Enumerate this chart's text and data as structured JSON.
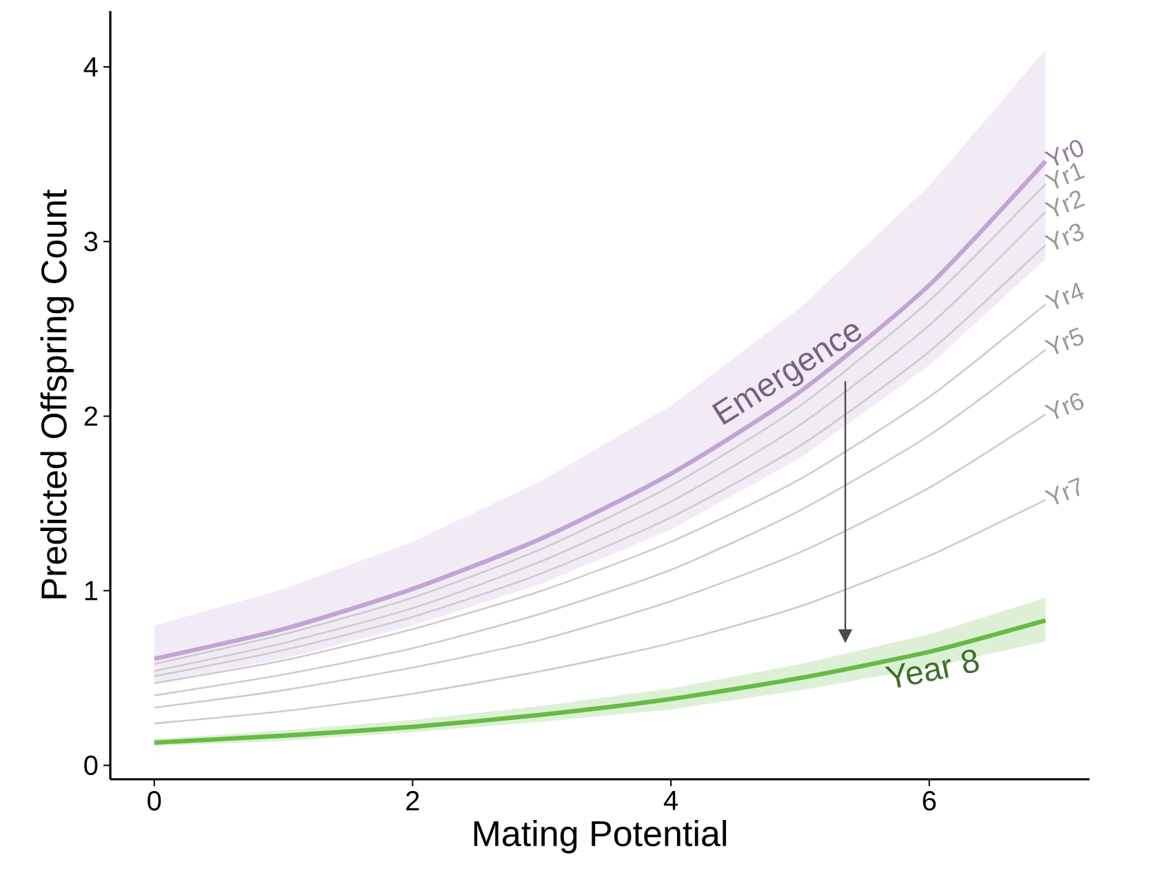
{
  "chart_data": {
    "type": "line",
    "xlabel": "Mating Potential",
    "ylabel": "Predicted Offspring Count",
    "x": [
      0,
      1,
      2,
      3,
      4,
      5,
      6,
      6.9
    ],
    "xlim": [
      -0.34,
      7.24
    ],
    "ylim": [
      -0.08,
      4.32
    ],
    "xticks": [
      0,
      2,
      4,
      6
    ],
    "yticks": [
      0,
      1,
      2,
      3,
      4
    ],
    "series": [
      {
        "name": "Yr0",
        "color": "#c3a3d6",
        "values": [
          0.61,
          0.78,
          1.01,
          1.3,
          1.67,
          2.14,
          2.75,
          3.46
        ],
        "lower": [
          0.47,
          0.61,
          0.8,
          1.04,
          1.35,
          1.76,
          2.29,
          2.9
        ],
        "upper": [
          0.8,
          1.01,
          1.28,
          1.63,
          2.06,
          2.62,
          3.32,
          4.1
        ]
      },
      {
        "name": "Yr1",
        "color": "#cccccc",
        "values": [
          0.58,
          0.75,
          0.96,
          1.24,
          1.6,
          2.06,
          2.66,
          3.33
        ]
      },
      {
        "name": "Yr2",
        "color": "#cccccc",
        "values": [
          0.54,
          0.7,
          0.9,
          1.17,
          1.51,
          1.95,
          2.52,
          3.17
        ]
      },
      {
        "name": "Yr3",
        "color": "#cccccc",
        "values": [
          0.51,
          0.66,
          0.85,
          1.1,
          1.42,
          1.83,
          2.37,
          2.98
        ]
      },
      {
        "name": "Yr4",
        "color": "#cccccc",
        "values": [
          0.47,
          0.6,
          0.78,
          1.0,
          1.28,
          1.64,
          2.11,
          2.64
        ]
      },
      {
        "name": "Yr5",
        "color": "#cccccc",
        "values": [
          0.4,
          0.52,
          0.67,
          0.87,
          1.12,
          1.46,
          1.89,
          2.38
        ]
      },
      {
        "name": "Yr6",
        "color": "#cccccc",
        "values": [
          0.33,
          0.43,
          0.56,
          0.72,
          0.94,
          1.22,
          1.59,
          2.01
        ]
      },
      {
        "name": "Yr7",
        "color": "#cccccc",
        "values": [
          0.24,
          0.31,
          0.41,
          0.54,
          0.7,
          0.91,
          1.2,
          1.52
        ]
      },
      {
        "color": "#66bb44",
        "values": [
          0.13,
          0.17,
          0.22,
          0.29,
          0.38,
          0.5,
          0.65,
          0.83
        ],
        "lower": [
          0.11,
          0.14,
          0.19,
          0.25,
          0.32,
          0.43,
          0.56,
          0.71
        ],
        "upper": [
          0.15,
          0.2,
          0.26,
          0.34,
          0.44,
          0.58,
          0.75,
          0.96
        ]
      }
    ],
    "annotations": [
      {
        "text": "Emergence",
        "x": 5.0,
        "y": 2.14
      },
      {
        "text": "Year 8",
        "x": 6.0,
        "y": 0.65
      }
    ]
  }
}
